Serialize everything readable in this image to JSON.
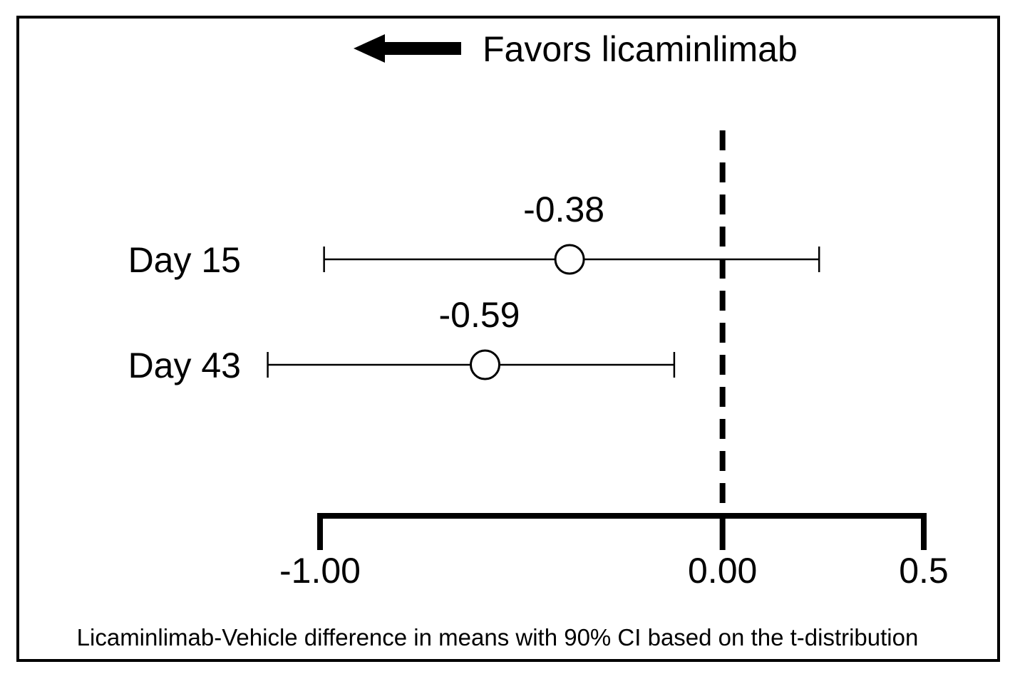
{
  "chart_data": {
    "type": "forest",
    "annotation": "Favors licaminlimab",
    "xlabel": "Licaminlimab-Vehicle difference in means with 90% CI based on the t-distribution",
    "xlim": [
      -1.0,
      0.5
    ],
    "reference_line": 0.0,
    "ticks": [
      {
        "value": -1.0,
        "label": "-1.00"
      },
      {
        "value": 0.0,
        "label": "0.00"
      },
      {
        "value": 0.5,
        "label": "0.5"
      }
    ],
    "rows": [
      {
        "label": "Day 15",
        "estimate": -0.38,
        "estimate_label": "-0.38",
        "ci_low": -0.99,
        "ci_high": 0.24
      },
      {
        "label": "Day 43",
        "estimate": -0.59,
        "estimate_label": "-0.59",
        "ci_low": -1.13,
        "ci_high": -0.12
      }
    ]
  }
}
